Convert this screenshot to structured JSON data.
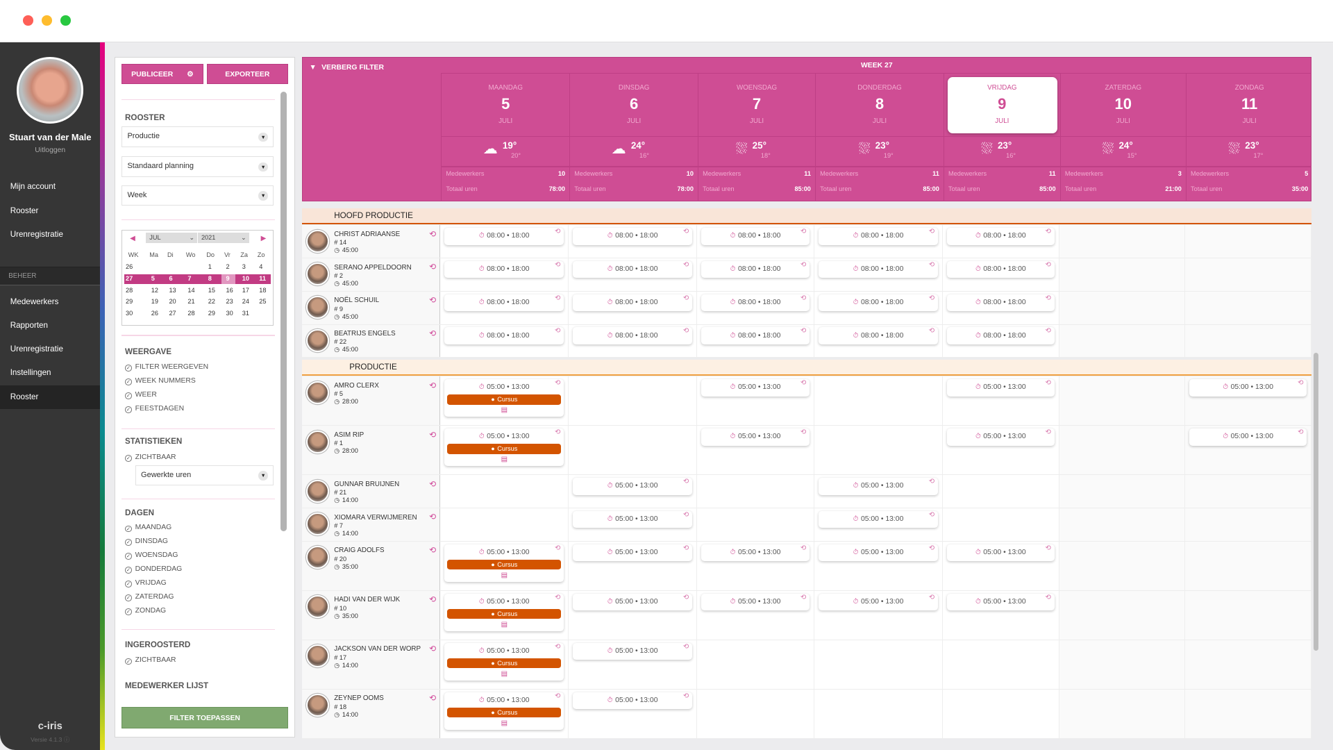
{
  "window": {
    "controls": [
      "close",
      "minimize",
      "maximize"
    ],
    "colors": {
      "close": "#fe5f57",
      "minimize": "#febc2e",
      "maximize": "#28c840"
    }
  },
  "colors": {
    "brand": "#cf4d94",
    "accent_orange": "#d35400",
    "apply_green": "#80a970",
    "sidebar": "#363636"
  },
  "sidebar": {
    "user_name": "Stuart van der Male",
    "logout": "Uitloggen",
    "nav": [
      "Mijn account",
      "Rooster",
      "Urenregistratie"
    ],
    "section": "BEHEER",
    "admin_nav": [
      "Medewerkers",
      "Rapporten",
      "Urenregistratie",
      "Instellingen",
      "Rooster"
    ],
    "active": "Rooster",
    "logo": "c-iris",
    "version": "Versie 4.1.3"
  },
  "filter": {
    "publish": "PUBLICEER",
    "export": "EXPORTEER",
    "rooster_heading": "ROOSTER",
    "selects": [
      "Productie",
      "Standaard planning",
      "Week"
    ],
    "calendar": {
      "month": "JUL",
      "year": "2021",
      "headers": [
        "WK",
        "Ma",
        "Di",
        "Wo",
        "Do",
        "Vr",
        "Za",
        "Zo"
      ],
      "weeks": [
        [
          "26",
          "",
          "",
          "",
          "1",
          "2",
          "3",
          "4"
        ],
        [
          "27",
          "5",
          "6",
          "7",
          "8",
          "9",
          "10",
          "11"
        ],
        [
          "28",
          "12",
          "13",
          "14",
          "15",
          "16",
          "17",
          "18"
        ],
        [
          "29",
          "19",
          "20",
          "21",
          "22",
          "23",
          "24",
          "25"
        ],
        [
          "30",
          "26",
          "27",
          "28",
          "29",
          "30",
          "31",
          ""
        ]
      ],
      "selected_week": "27",
      "selected_day": "9"
    },
    "weergave_heading": "WEERGAVE",
    "weergave": [
      "FILTER WEERGEVEN",
      "WEEK NUMMERS",
      "WEER",
      "FEESTDAGEN"
    ],
    "stat_heading": "STATISTIEKEN",
    "stat_visible": "ZICHTBAAR",
    "stat_select": "Gewerkte uren",
    "dagen_heading": "DAGEN",
    "dagen": [
      "MAANDAG",
      "DINSDAG",
      "WOENSDAG",
      "DONDERDAG",
      "VRIJDAG",
      "ZATERDAG",
      "ZONDAG"
    ],
    "ingeroosterd_heading": "INGEROOSTERD",
    "ingeroosterd_visible": "ZICHTBAAR",
    "medewerker_heading": "MEDEWERKER LIJST",
    "apply": "FILTER TOEPASSEN"
  },
  "schedule": {
    "toggle_filter": "VERBERG FILTER",
    "week": "WEEK 27",
    "stat_labels": {
      "employees": "Medewerkers",
      "hours": "Totaal uren"
    },
    "days": [
      {
        "name": "MAANDAG",
        "num": "5",
        "month": "JULI",
        "weather": "cloud",
        "high": "19°",
        "low": "20°",
        "employees": "10",
        "hours": "78:00"
      },
      {
        "name": "DINSDAG",
        "num": "6",
        "month": "JULI",
        "weather": "cloud",
        "high": "24°",
        "low": "16°",
        "employees": "10",
        "hours": "78:00"
      },
      {
        "name": "WOENSDAG",
        "num": "7",
        "month": "JULI",
        "weather": "rain",
        "high": "25°",
        "low": "18°",
        "employees": "11",
        "hours": "85:00"
      },
      {
        "name": "DONDERDAG",
        "num": "8",
        "month": "JULI",
        "weather": "rain",
        "high": "23°",
        "low": "19°",
        "employees": "11",
        "hours": "85:00"
      },
      {
        "name": "VRIJDAG",
        "num": "9",
        "month": "JULI",
        "weather": "rain",
        "high": "23°",
        "low": "16°",
        "employees": "11",
        "hours": "85:00",
        "today": true
      },
      {
        "name": "ZATERDAG",
        "num": "10",
        "month": "JULI",
        "weather": "rain",
        "high": "24°",
        "low": "15°",
        "employees": "3",
        "hours": "21:00"
      },
      {
        "name": "ZONDAG",
        "num": "11",
        "month": "JULI",
        "weather": "rain",
        "high": "23°",
        "low": "17°",
        "employees": "5",
        "hours": "35:00"
      }
    ],
    "groups": [
      {
        "name": "HOOFD PRODUCTIE",
        "employees": [
          {
            "name": "CHRIST ADRIAANSE",
            "id": "# 14",
            "hours": "45:00",
            "shifts": [
              {
                "t": "08:00 • 18:00"
              },
              {
                "t": "08:00 • 18:00"
              },
              {
                "t": "08:00 • 18:00"
              },
              {
                "t": "08:00 • 18:00"
              },
              {
                "t": "08:00 • 18:00"
              },
              null,
              null
            ]
          },
          {
            "name": "SERANO APPELDOORN",
            "id": "# 2",
            "hours": "45:00",
            "shifts": [
              {
                "t": "08:00 • 18:00"
              },
              {
                "t": "08:00 • 18:00"
              },
              {
                "t": "08:00 • 18:00"
              },
              {
                "t": "08:00 • 18:00"
              },
              {
                "t": "08:00 • 18:00"
              },
              null,
              null
            ]
          },
          {
            "name": "NOËL SCHUIL",
            "id": "# 9",
            "hours": "45:00",
            "shifts": [
              {
                "t": "08:00 • 18:00"
              },
              {
                "t": "08:00 • 18:00"
              },
              {
                "t": "08:00 • 18:00"
              },
              {
                "t": "08:00 • 18:00"
              },
              {
                "t": "08:00 • 18:00"
              },
              null,
              null
            ]
          },
          {
            "name": "BEATRIJS ENGELS",
            "id": "# 22",
            "hours": "45:00",
            "shifts": [
              {
                "t": "08:00 • 18:00"
              },
              {
                "t": "08:00 • 18:00"
              },
              {
                "t": "08:00 • 18:00"
              },
              {
                "t": "08:00 • 18:00"
              },
              {
                "t": "08:00 • 18:00"
              },
              null,
              null
            ]
          }
        ]
      },
      {
        "name": "PRODUCTIE",
        "employees": [
          {
            "name": "AMRO CLERX",
            "id": "# 5",
            "hours": "28:00",
            "shifts": [
              {
                "t": "05:00 • 13:00",
                "tag": "Cursus"
              },
              null,
              {
                "t": "05:00 • 13:00"
              },
              null,
              {
                "t": "05:00 • 13:00"
              },
              null,
              {
                "t": "05:00 • 13:00"
              }
            ]
          },
          {
            "name": "ASIM RIP",
            "id": "# 1",
            "hours": "28:00",
            "shifts": [
              {
                "t": "05:00 • 13:00",
                "tag": "Cursus"
              },
              null,
              {
                "t": "05:00 • 13:00"
              },
              null,
              {
                "t": "05:00 • 13:00"
              },
              null,
              {
                "t": "05:00 • 13:00"
              }
            ]
          },
          {
            "name": "GUNNAR BRUIJNEN",
            "id": "# 21",
            "hours": "14:00",
            "shifts": [
              null,
              {
                "t": "05:00 • 13:00"
              },
              null,
              {
                "t": "05:00 • 13:00"
              },
              null,
              null,
              null
            ]
          },
          {
            "name": "XIOMARA VERWIJMEREN",
            "id": "# 7",
            "hours": "14:00",
            "shifts": [
              null,
              {
                "t": "05:00 • 13:00"
              },
              null,
              {
                "t": "05:00 • 13:00"
              },
              null,
              null,
              null
            ]
          },
          {
            "name": "CRAIG ADOLFS",
            "id": "# 20",
            "hours": "35:00",
            "shifts": [
              {
                "t": "05:00 • 13:00",
                "tag": "Cursus"
              },
              {
                "t": "05:00 • 13:00"
              },
              {
                "t": "05:00 • 13:00"
              },
              {
                "t": "05:00 • 13:00"
              },
              {
                "t": "05:00 • 13:00"
              },
              null,
              null
            ]
          },
          {
            "name": "HADI VAN DER WIJK",
            "id": "# 10",
            "hours": "35:00",
            "shifts": [
              {
                "t": "05:00 • 13:00",
                "tag": "Cursus"
              },
              {
                "t": "05:00 • 13:00"
              },
              {
                "t": "05:00 • 13:00"
              },
              {
                "t": "05:00 • 13:00"
              },
              {
                "t": "05:00 • 13:00"
              },
              null,
              null
            ]
          },
          {
            "name": "JACKSON VAN DER WORP",
            "id": "# 17",
            "hours": "14:00",
            "shifts": [
              {
                "t": "05:00 • 13:00",
                "tag": "Cursus"
              },
              {
                "t": "05:00 • 13:00"
              },
              null,
              null,
              null,
              null,
              null
            ]
          },
          {
            "name": "ZEYNEP OOMS",
            "id": "# 18",
            "hours": "14:00",
            "shifts": [
              {
                "t": "05:00 • 13:00",
                "tag": "Cursus"
              },
              {
                "t": "05:00 • 13:00"
              },
              null,
              null,
              null,
              null,
              null
            ]
          }
        ]
      }
    ]
  }
}
